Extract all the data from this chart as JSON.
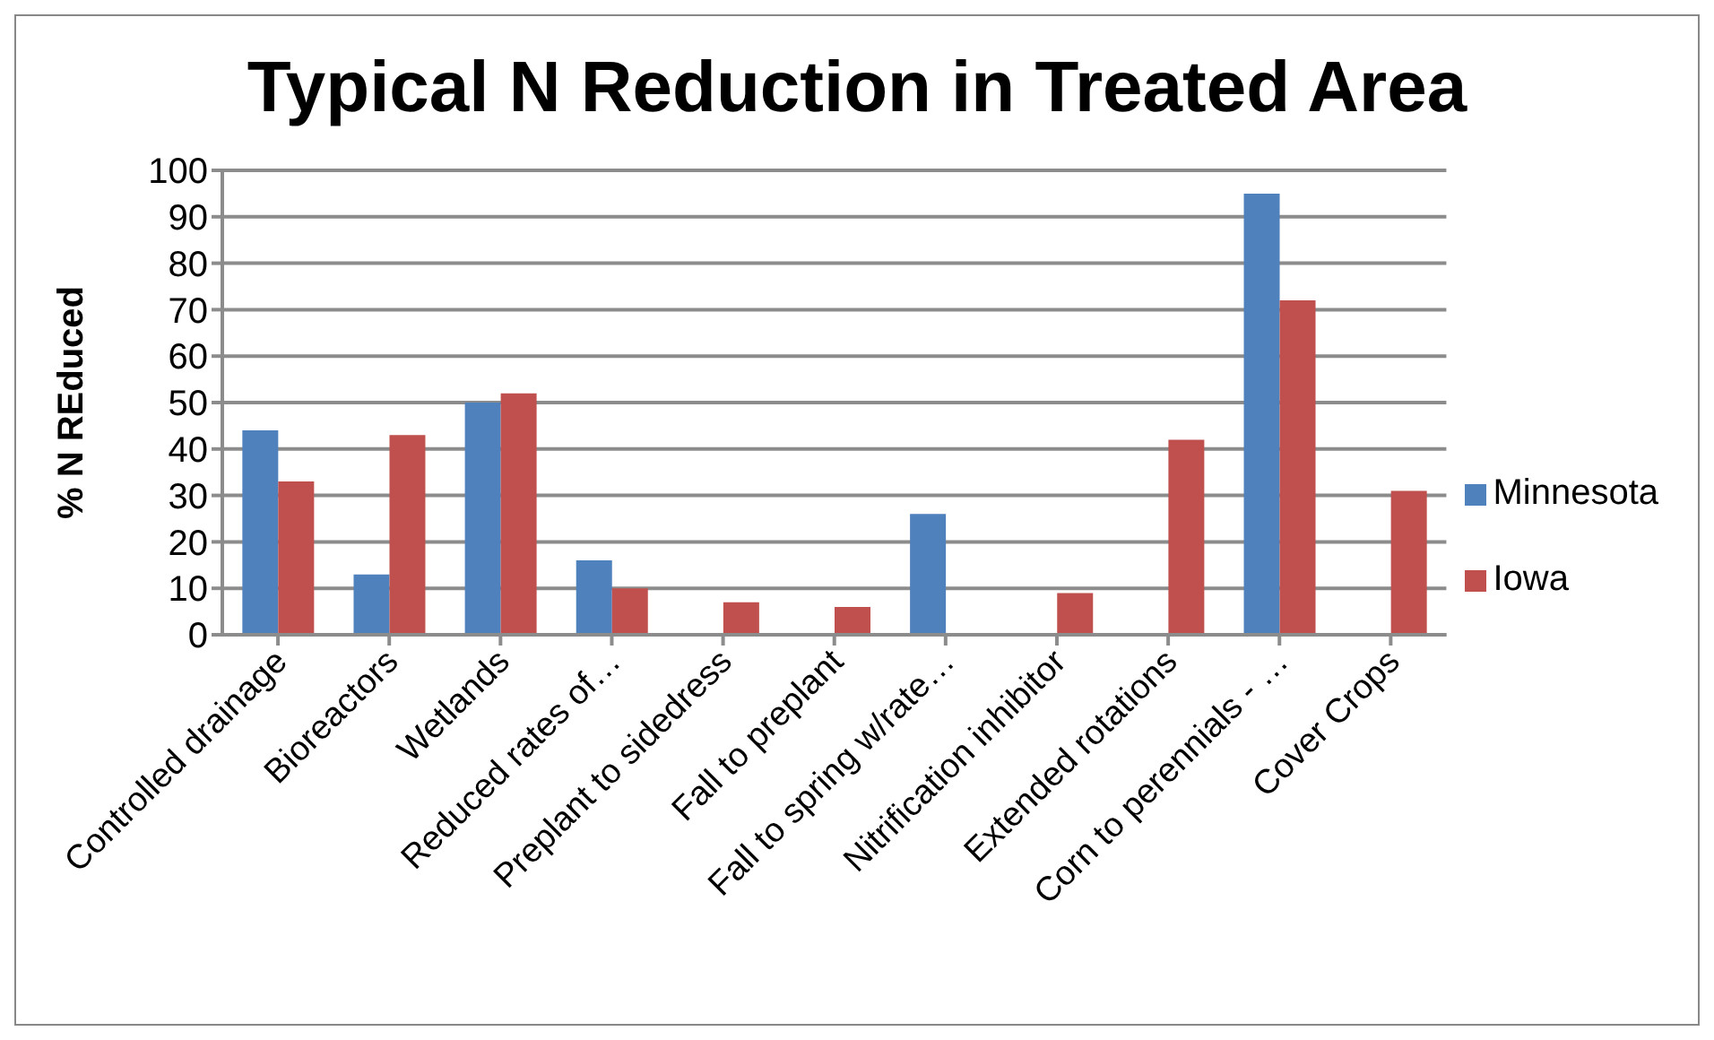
{
  "chart_data": {
    "type": "bar",
    "title": "Typical N Reduction in Treated Area",
    "ylabel": "% N REduced",
    "categories": [
      "Controlled drainage",
      "Bioreactors",
      "Wetlands",
      "Reduced rates of…",
      "Preplant to sidedress",
      "Fall to preplant",
      "Fall to spring w/rate…",
      "Nitrification inhibitor",
      "Extended rotations",
      "Corn to perennials - …",
      "Cover Crops"
    ],
    "series": [
      {
        "name": "Minnesota",
        "color": "#4f81bd",
        "values": [
          44,
          13,
          50,
          16,
          null,
          null,
          26,
          null,
          null,
          95,
          null
        ]
      },
      {
        "name": "Iowa",
        "color": "#c0504d",
        "values": [
          33,
          43,
          52,
          10,
          7,
          6,
          null,
          9,
          42,
          72,
          31
        ]
      }
    ],
    "ylim": [
      0,
      100
    ],
    "yticks": [
      0,
      10,
      20,
      30,
      40,
      50,
      60,
      70,
      80,
      90,
      100
    ],
    "grid": "y",
    "legend": "right"
  }
}
